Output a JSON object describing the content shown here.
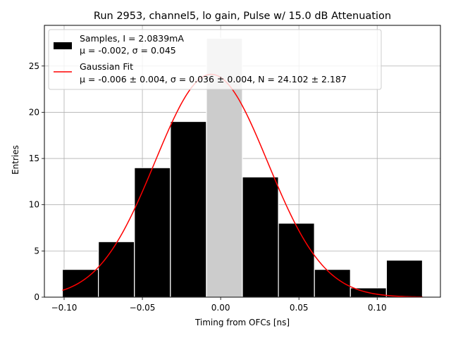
{
  "chart_data": {
    "type": "bar",
    "title": "Run 2953, channel5, lo gain, Pulse w/ 15.0 dB Attenuation",
    "xlabel": "Timing from OFCs [ns]",
    "ylabel": "Entries",
    "xlim": [
      -0.1126,
      0.1404
    ],
    "ylim": [
      0,
      29.4
    ],
    "grid": true,
    "xticks": [
      -0.1,
      -0.05,
      0.0,
      0.05,
      0.1
    ],
    "xtick_labels": [
      "−0.10",
      "−0.05",
      "0.00",
      "0.05",
      "0.10"
    ],
    "yticks": [
      0,
      5,
      10,
      15,
      20,
      25
    ],
    "ytick_labels": [
      "0",
      "5",
      "10",
      "15",
      "20",
      "25"
    ],
    "bin_edges": [
      -0.1011,
      -0.0781,
      -0.0551,
      -0.0321,
      -0.0091,
      0.0139,
      0.0369,
      0.0599,
      0.0829,
      0.1059,
      0.1289
    ],
    "counts": [
      3,
      6,
      14,
      19,
      28,
      13,
      8,
      3,
      1,
      4
    ],
    "hist_color": "#000000",
    "highlight_bin_index": 4,
    "highlight_color": "#cccccc",
    "fit": {
      "mu": -0.006,
      "sigma": 0.036,
      "N": 24.102,
      "color": "#ff0000"
    },
    "legend": {
      "position": "upper-left",
      "entries": [
        {
          "line1": "Samples, I = 2.0839mA",
          "line2": "μ = -0.002, σ = 0.045",
          "swatch": "patch"
        },
        {
          "line1": "Gaussian Fit",
          "line2": "μ = -0.006 ± 0.004, σ = 0.036 ± 0.004, N = 24.102 ± 2.187",
          "swatch": "line"
        }
      ]
    }
  }
}
